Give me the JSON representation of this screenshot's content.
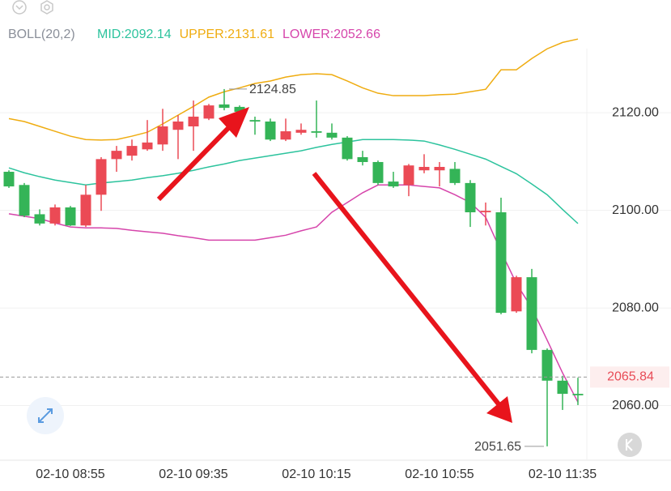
{
  "chart_data": {
    "type": "candlestick",
    "indicator": "BOLL(20,2)",
    "categories": [
      null,
      null,
      null,
      null,
      "02-10 08:55",
      null,
      null,
      null,
      null,
      null,
      null,
      null,
      "02-10 09:35",
      null,
      null,
      null,
      null,
      null,
      null,
      null,
      "02-10 10:15",
      null,
      null,
      null,
      null,
      null,
      null,
      null,
      "02-10 10:55",
      null,
      null,
      null,
      null,
      null,
      null,
      null,
      "02-10 11:35",
      null
    ],
    "open": [
      2107.9,
      2105.2,
      2099.2,
      2097.3,
      2100.6,
      2096.9,
      2103.2,
      2110.5,
      2111.2,
      2112.5,
      2113.5,
      2116.5,
      2117.2,
      2118.8,
      2121.7,
      2121.2,
      2118.5,
      2118.2,
      2114.5,
      2115.9,
      2116.2,
      2115.9,
      2114.9,
      2110.9,
      2109.9,
      2105.9,
      2105.2,
      2108.2,
      2108.2,
      2108.5,
      2105.6,
      2099.6,
      2099.6,
      2079.3,
      2086.3,
      2071.4,
      2065.1,
      2062.4
    ],
    "high": [
      2108.2,
      2105.6,
      2100.2,
      2101.2,
      2100.9,
      2105.2,
      2110.9,
      2113.2,
      2114.5,
      2118.5,
      2120.8,
      2119.5,
      2122.5,
      2121.8,
      2124.85,
      2121.5,
      2119.2,
      2118.8,
      2118.8,
      2117.8,
      2122.5,
      2117.8,
      2115.2,
      2112.2,
      2110.2,
      2107.9,
      2109.5,
      2111.5,
      2109.9,
      2109.9,
      2106.2,
      2101.6,
      2102.6,
      2086.6,
      2088.0,
      2071.7,
      2066.1,
      2065.7
    ],
    "low": [
      2104.6,
      2098.6,
      2096.9,
      2096.9,
      2096.8,
      2096.6,
      2099.9,
      2107.9,
      2110.2,
      2112.2,
      2112.2,
      2110.5,
      2112.2,
      2118.5,
      2120.5,
      2119.8,
      2115.5,
      2114.2,
      2114.2,
      2115.5,
      2114.9,
      2114.5,
      2110.2,
      2109.2,
      2105.2,
      2104.6,
      2102.9,
      2107.6,
      2104.9,
      2105.2,
      2096.6,
      2096.9,
      2078.7,
      2079.0,
      2070.7,
      2051.65,
      2059.1,
      2060.1
    ],
    "close": [
      2104.9,
      2098.9,
      2097.3,
      2100.6,
      2096.9,
      2103.2,
      2110.5,
      2112.2,
      2113.2,
      2113.9,
      2117.2,
      2118.2,
      2119.2,
      2121.5,
      2121.0,
      2120.2,
      2118.2,
      2114.5,
      2116.2,
      2116.5,
      2115.9,
      2114.9,
      2110.5,
      2109.9,
      2105.6,
      2104.9,
      2109.2,
      2108.9,
      2108.9,
      2105.6,
      2099.6,
      2099.9,
      2079.0,
      2086.3,
      2071.4,
      2065.1,
      2062.4,
      2062.1
    ],
    "up_color": "#eb4a55",
    "down_color": "#34b457",
    "series": [
      {
        "name": "MID:2092.14",
        "color": "#2cc39d",
        "values": [
          2108.7,
          2107.7,
          2106.9,
          2106.2,
          2105.7,
          2105.2,
          2105.6,
          2105.9,
          2106.2,
          2106.7,
          2107.1,
          2107.6,
          2108.2,
          2108.9,
          2109.5,
          2110.2,
          2110.7,
          2111.2,
          2111.7,
          2112.2,
          2112.9,
          2113.5,
          2114.0,
          2114.5,
          2114.5,
          2114.5,
          2114.4,
          2114.2,
          2113.4,
          2112.5,
          2111.5,
          2110.5,
          2109.0,
          2107.5,
          2105.4,
          2103.2,
          2100.2,
          2097.3
        ]
      },
      {
        "name": "UPPER:2131.61",
        "color": "#efac10",
        "values": [
          2118.8,
          2118.2,
          2117.2,
          2116.2,
          2115.2,
          2114.5,
          2114.4,
          2114.5,
          2115.2,
          2116.0,
          2117.7,
          2119.5,
          2121.3,
          2123.2,
          2124.3,
          2125.1,
          2126.0,
          2126.5,
          2127.3,
          2127.8,
          2128.0,
          2127.8,
          2126.5,
          2125.1,
          2124.0,
          2123.5,
          2123.5,
          2123.5,
          2123.7,
          2123.8,
          2124.3,
          2124.8,
          2128.8,
          2128.8,
          2131.1,
          2133.1,
          2134.4,
          2135.1
        ]
      },
      {
        "name": "LOWER:2052.66",
        "color": "#d645ab",
        "values": [
          2099.3,
          2098.8,
          2098.3,
          2097.4,
          2096.6,
          2096.4,
          2096.4,
          2096.3,
          2095.9,
          2095.6,
          2095.3,
          2094.8,
          2094.4,
          2093.9,
          2093.9,
          2093.9,
          2093.9,
          2094.4,
          2094.9,
          2095.8,
          2096.6,
          2099.6,
          2101.6,
          2103.6,
          2105.2,
          2105.2,
          2105.2,
          2104.9,
          2104.6,
          2103.2,
          2101.6,
          2098.6,
          2091.6,
          2085.0,
          2080.0,
          2073.4,
          2066.7,
          2060.7
        ]
      }
    ],
    "ylim": [
      2048.8,
      2143.1
    ],
    "yticks": [
      {
        "value": 2060,
        "label": "2060.00"
      },
      {
        "value": 2080,
        "label": "2080.00"
      },
      {
        "value": 2100,
        "label": "2100.00"
      },
      {
        "value": 2120,
        "label": "2120.00"
      }
    ],
    "grid": true,
    "high_mark": 2124.85,
    "low_mark": 2051.65,
    "last_price": 2065.84,
    "last_price_color": "#e84c57"
  }
}
